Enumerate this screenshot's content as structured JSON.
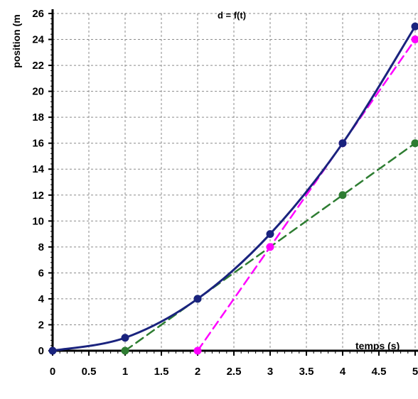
{
  "chart_data": {
    "type": "line",
    "title": "d = f(t)",
    "xlabel": "temps (s)",
    "ylabel": "position (m",
    "xlim": [
      0,
      5
    ],
    "ylim": [
      0,
      26
    ],
    "grid": true,
    "x_ticks": [
      "0",
      "0.5",
      "1",
      "1.5",
      "2",
      "2.5",
      "3",
      "3.5",
      "4",
      "4.5",
      "5"
    ],
    "y_ticks": [
      "0",
      "2",
      "4",
      "6",
      "8",
      "10",
      "12",
      "14",
      "16",
      "18",
      "20",
      "22",
      "24",
      "26"
    ],
    "series": [
      {
        "color": "#1a237e",
        "style": "solid",
        "markers": true,
        "points": [
          [
            0,
            0
          ],
          [
            1,
            1
          ],
          [
            2,
            4
          ],
          [
            3,
            9
          ],
          [
            4,
            16
          ],
          [
            5,
            25
          ]
        ]
      },
      {
        "color": "#2e7d32",
        "style": "dashed",
        "markers": true,
        "points": [
          [
            1,
            0
          ],
          [
            2,
            4
          ],
          [
            4,
            12
          ],
          [
            5,
            16
          ]
        ]
      },
      {
        "color": "#ff00ff",
        "style": "dashed",
        "markers": true,
        "points": [
          [
            2,
            0
          ],
          [
            3,
            8
          ],
          [
            4,
            16
          ],
          [
            5,
            24
          ]
        ]
      }
    ]
  }
}
